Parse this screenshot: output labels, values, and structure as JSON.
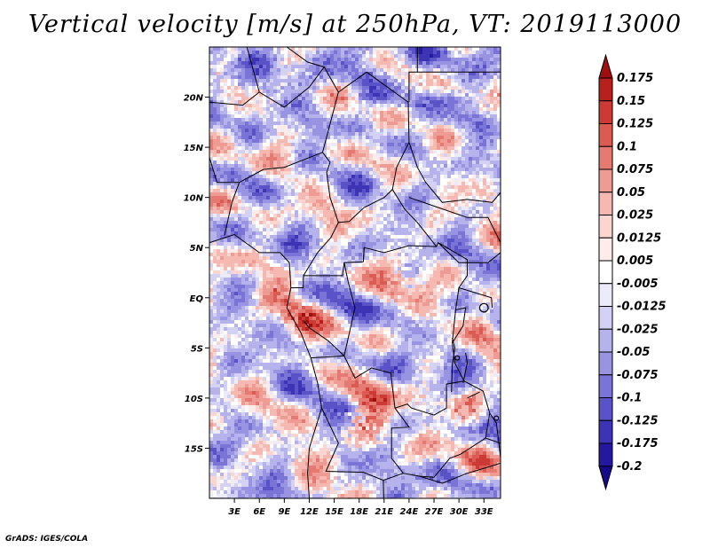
{
  "chart_data": {
    "type": "heatmap",
    "title": "Vertical velocity [m/s] at 250hPa, VT: 2019113000",
    "variable": "Vertical velocity",
    "units": "m/s",
    "level": "250hPa",
    "valid_time": "2019113000",
    "x_axis": {
      "range": [
        0,
        35
      ],
      "ticks": [
        3,
        6,
        9,
        12,
        15,
        18,
        21,
        24,
        27,
        30,
        33
      ],
      "tick_labels": [
        "3E",
        "6E",
        "9E",
        "12E",
        "15E",
        "18E",
        "21E",
        "24E",
        "27E",
        "30E",
        "33E"
      ]
    },
    "y_axis": {
      "range": [
        -20,
        25
      ],
      "ticks": [
        20,
        15,
        10,
        5,
        0,
        -5,
        -10,
        -15
      ],
      "tick_labels": [
        "20N",
        "15N",
        "10N",
        "5N",
        "EQ",
        "5S",
        "10S",
        "15S"
      ]
    },
    "colorbar": {
      "levels": [
        "0.175",
        "0.15",
        "0.125",
        "0.1",
        "0.075",
        "0.05",
        "0.025",
        "0.0125",
        "0.005",
        "-0.005",
        "-0.0125",
        "-0.025",
        "-0.05",
        "-0.075",
        "-0.1",
        "-0.125",
        "-0.175",
        "-0.2"
      ],
      "colors": [
        "#9e0f10",
        "#b8201f",
        "#cc3a35",
        "#db5a52",
        "#e57a72",
        "#ee9b93",
        "#f5b9b2",
        "#fbd5cf",
        "#fdecea",
        "#ffffff",
        "#ecebfa",
        "#d3d1f4",
        "#b6b3ec",
        "#9894e2",
        "#7a74d6",
        "#5a53c8",
        "#3c33b5",
        "#2418a0",
        "#150a8a"
      ]
    }
  },
  "credit": "GrADS: IGES/COLA"
}
